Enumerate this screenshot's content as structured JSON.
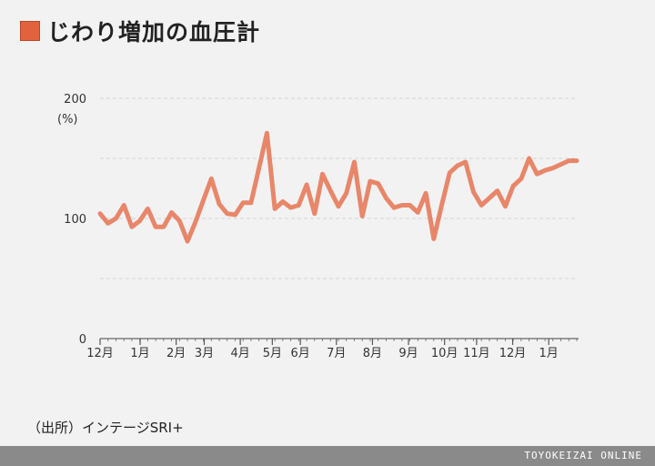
{
  "title": "じわり増加の血圧計",
  "accent_color": "#e0623f",
  "line_color": "#e8866a",
  "source_text": "（出所）インテージSRI+",
  "footer_brand": "TOYOKEIZAI ONLINE",
  "chart_data": {
    "type": "line",
    "title": "じわり増加の血圧計",
    "ylabel": "(%)",
    "xlabel": "",
    "ylim": [
      0,
      200
    ],
    "yticks": [
      0,
      100,
      200
    ],
    "grid": true,
    "legend": "none",
    "x_tick_labels": [
      "12月",
      "1月",
      "2月",
      "3月",
      "4月",
      "5月",
      "6月",
      "7月",
      "8月",
      "9月",
      "10月",
      "11月",
      "12月",
      "1月"
    ],
    "series": [
      {
        "name": "血圧計",
        "values": [
          104,
          96,
          100,
          111,
          93,
          98,
          108,
          93,
          93,
          105,
          98,
          81,
          97,
          115,
          133,
          112,
          104,
          103,
          113,
          113,
          142,
          171,
          108,
          114,
          109,
          111,
          128,
          104,
          137,
          123,
          110,
          121,
          147,
          102,
          131,
          129,
          117,
          109,
          111,
          111,
          105,
          121,
          83,
          111,
          138,
          144,
          147,
          122,
          111,
          117,
          123,
          110,
          127,
          133,
          150,
          137,
          140,
          142,
          145,
          148,
          148
        ]
      }
    ]
  }
}
